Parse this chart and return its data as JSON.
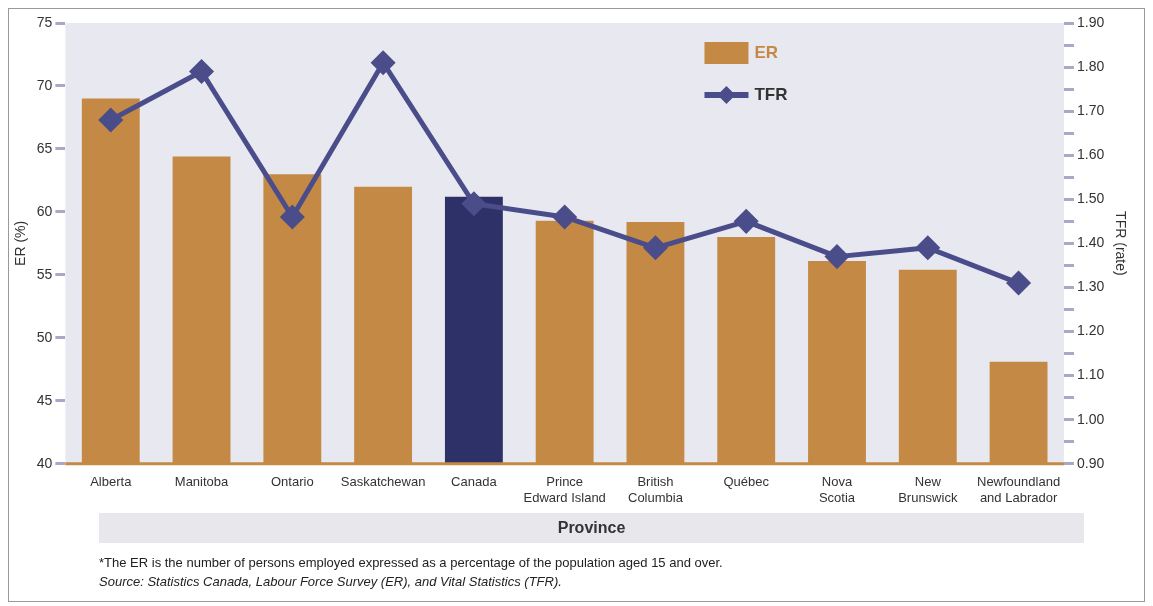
{
  "chart_data": {
    "type": "bar",
    "xlabel": "Province",
    "ylabel": "ER (%)",
    "y2label": "TFR (rate)",
    "categories": [
      "Alberta",
      "Manitoba",
      "Ontario",
      "Saskatchewan",
      "Canada",
      "Prince\nEdward Island",
      "British\nColumbia",
      "Québec",
      "Nova\nScotia",
      "New\nBrunswick",
      "Newfoundland\nand Labrador"
    ],
    "series": [
      {
        "name": "ER",
        "color": "#c48a45",
        "colors": [
          "#c48a45",
          "#c48a45",
          "#c48a45",
          "#c48a45",
          "#2e3168",
          "#c48a45",
          "#c48a45",
          "#c48a45",
          "#c48a45",
          "#c48a45",
          "#c48a45"
        ],
        "values": [
          69.0,
          64.4,
          63.0,
          62.0,
          61.2,
          59.3,
          59.2,
          58.0,
          56.1,
          55.4,
          48.1
        ]
      },
      {
        "name": "TFR",
        "type": "line",
        "axis": "y2",
        "color": "#4b4d8a",
        "values": [
          1.68,
          1.79,
          1.46,
          1.81,
          1.49,
          1.46,
          1.39,
          1.45,
          1.37,
          1.39,
          1.31
        ]
      }
    ],
    "ylim": [
      40,
      75
    ],
    "yticks": [
      40,
      45,
      50,
      55,
      60,
      65,
      70,
      75
    ],
    "y2lim": [
      0.9,
      1.9
    ],
    "y2ticks": [
      {
        "value": 0.9,
        "label": "0.90"
      },
      {
        "value": 0.95,
        "label": null
      },
      {
        "value": 1.0,
        "label": "1.00"
      },
      {
        "value": 1.05,
        "label": null
      },
      {
        "value": 1.1,
        "label": "1.10"
      },
      {
        "value": 1.15,
        "label": null
      },
      {
        "value": 1.2,
        "label": "1.20"
      },
      {
        "value": 1.25,
        "label": null
      },
      {
        "value": 1.3,
        "label": "1.30"
      },
      {
        "value": 1.35,
        "label": null
      },
      {
        "value": 1.4,
        "label": "1.40"
      },
      {
        "value": 1.45,
        "label": null
      },
      {
        "value": 1.5,
        "label": "1.50"
      },
      {
        "value": 1.55,
        "label": null
      },
      {
        "value": 1.6,
        "label": "1.60"
      },
      {
        "value": 1.65,
        "label": null
      },
      {
        "value": 1.7,
        "label": "1.70"
      },
      {
        "value": 1.75,
        "label": null
      },
      {
        "value": 1.8,
        "label": "1.80"
      },
      {
        "value": 1.85,
        "label": null
      },
      {
        "value": 1.9,
        "label": "1.90"
      }
    ],
    "grid": false,
    "legend": "top right",
    "marker": "diamond",
    "line_style": "solid",
    "annotations": [
      "*The ER is the number of persons employed expressed as a percentage of the population aged 15 and over.",
      "Source: Statistics Canada, Labour Force Survey (ER), and Vital Statistics (TFR)."
    ]
  }
}
